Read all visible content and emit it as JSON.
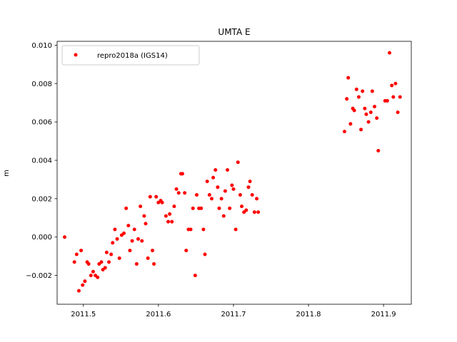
{
  "chart_data": {
    "type": "scatter",
    "title": "UMTA E",
    "xlabel": "",
    "ylabel": "m",
    "xlim": [
      2011.465,
      2011.937
    ],
    "ylim": [
      -0.0035,
      0.0102
    ],
    "xticks": [
      2011.5,
      2011.6,
      2011.7,
      2011.8,
      2011.9
    ],
    "xtick_labels": [
      "2011.5",
      "2011.6",
      "2011.7",
      "2011.8",
      "2011.9"
    ],
    "yticks": [
      -0.002,
      0.0,
      0.002,
      0.004,
      0.006,
      0.008,
      0.01
    ],
    "ytick_labels": [
      "−0.002",
      "0.000",
      "0.002",
      "0.004",
      "0.006",
      "0.008",
      "0.010"
    ],
    "grid": false,
    "legend_position": "top-left",
    "series": [
      {
        "name": "repro2018a (IGS14)",
        "color": "#ff0000",
        "marker": "dot",
        "points": [
          [
            2011.475,
            0.0
          ],
          [
            2011.488,
            -0.0013
          ],
          [
            2011.491,
            -0.0009
          ],
          [
            2011.494,
            -0.0028
          ],
          [
            2011.497,
            -0.0007
          ],
          [
            2011.499,
            -0.0025
          ],
          [
            2011.502,
            -0.0023
          ],
          [
            2011.505,
            -0.0013
          ],
          [
            2011.507,
            -0.0014
          ],
          [
            2011.51,
            -0.002
          ],
          [
            2011.513,
            -0.0018
          ],
          [
            2011.516,
            -0.002
          ],
          [
            2011.519,
            -0.0021
          ],
          [
            2011.521,
            -0.0014
          ],
          [
            2011.524,
            -0.0013
          ],
          [
            2011.526,
            -0.0017
          ],
          [
            2011.529,
            -0.0016
          ],
          [
            2011.531,
            -0.0008
          ],
          [
            2011.534,
            -0.0013
          ],
          [
            2011.537,
            -0.0009
          ],
          [
            2011.539,
            -0.0003
          ],
          [
            2011.542,
            0.0004
          ],
          [
            2011.545,
            -0.0001
          ],
          [
            2011.548,
            -0.0011
          ],
          [
            2011.551,
            0.0001
          ],
          [
            2011.554,
            0.0002
          ],
          [
            2011.557,
            0.0015
          ],
          [
            2011.56,
            0.0006
          ],
          [
            2011.562,
            -0.0007
          ],
          [
            2011.565,
            -0.0002
          ],
          [
            2011.568,
            0.0004
          ],
          [
            2011.571,
            -0.0014
          ],
          [
            2011.573,
            -0.0001
          ],
          [
            2011.576,
            0.0016
          ],
          [
            2011.578,
            -0.0002
          ],
          [
            2011.581,
            0.0011
          ],
          [
            2011.583,
            0.0007
          ],
          [
            2011.586,
            -0.0011
          ],
          [
            2011.589,
            0.0021
          ],
          [
            2011.592,
            -0.0007
          ],
          [
            2011.594,
            -0.0014
          ],
          [
            2011.597,
            0.0021
          ],
          [
            2011.6,
            0.0018
          ],
          [
            2011.603,
            0.0019
          ],
          [
            2011.605,
            0.0018
          ],
          [
            2011.61,
            0.0011
          ],
          [
            2011.613,
            0.0008
          ],
          [
            2011.615,
            0.0012
          ],
          [
            2011.618,
            0.0008
          ],
          [
            2011.621,
            0.0016
          ],
          [
            2011.624,
            0.0025
          ],
          [
            2011.627,
            0.0023
          ],
          [
            2011.63,
            0.0033
          ],
          [
            2011.632,
            0.0033
          ],
          [
            2011.635,
            0.0023
          ],
          [
            2011.637,
            -0.0007
          ],
          [
            2011.64,
            0.0004
          ],
          [
            2011.643,
            0.0004
          ],
          [
            2011.646,
            0.0015
          ],
          [
            2011.649,
            -0.002
          ],
          [
            2011.651,
            0.0022
          ],
          [
            2011.654,
            0.0015
          ],
          [
            2011.657,
            0.0015
          ],
          [
            2011.66,
            0.0004
          ],
          [
            2011.662,
            -0.0009
          ],
          [
            2011.665,
            0.0029
          ],
          [
            2011.668,
            0.0022
          ],
          [
            2011.671,
            0.002
          ],
          [
            2011.673,
            0.0031
          ],
          [
            2011.676,
            0.0035
          ],
          [
            2011.679,
            0.0026
          ],
          [
            2011.681,
            0.0015
          ],
          [
            2011.684,
            0.002
          ],
          [
            2011.687,
            0.0011
          ],
          [
            2011.689,
            0.0024
          ],
          [
            2011.692,
            0.0035
          ],
          [
            2011.695,
            0.0015
          ],
          [
            2011.698,
            0.0027
          ],
          [
            2011.7,
            0.0025
          ],
          [
            2011.703,
            0.0004
          ],
          [
            2011.706,
            0.0039
          ],
          [
            2011.709,
            0.0022
          ],
          [
            2011.711,
            0.0016
          ],
          [
            2011.714,
            0.0013
          ],
          [
            2011.717,
            0.0014
          ],
          [
            2011.72,
            0.0026
          ],
          [
            2011.722,
            0.0029
          ],
          [
            2011.725,
            0.0022
          ],
          [
            2011.728,
            0.0013
          ],
          [
            2011.731,
            0.002
          ],
          [
            2011.733,
            0.0013
          ],
          [
            2011.848,
            0.0055
          ],
          [
            2011.851,
            0.0072
          ],
          [
            2011.853,
            0.0083
          ],
          [
            2011.856,
            0.0059
          ],
          [
            2011.859,
            0.0067
          ],
          [
            2011.861,
            0.0066
          ],
          [
            2011.864,
            0.0077
          ],
          [
            2011.867,
            0.0073
          ],
          [
            2011.87,
            0.0056
          ],
          [
            2011.872,
            0.0076
          ],
          [
            2011.875,
            0.0067
          ],
          [
            2011.877,
            0.0064
          ],
          [
            2011.88,
            0.006
          ],
          [
            2011.883,
            0.0065
          ],
          [
            2011.885,
            0.0076
          ],
          [
            2011.888,
            0.0068
          ],
          [
            2011.891,
            0.0062
          ],
          [
            2011.893,
            0.0045
          ],
          [
            2011.902,
            0.0071
          ],
          [
            2011.905,
            0.0071
          ],
          [
            2011.908,
            0.0096
          ],
          [
            2011.911,
            0.0079
          ],
          [
            2011.913,
            0.0073
          ],
          [
            2011.916,
            0.008
          ],
          [
            2011.919,
            0.0065
          ],
          [
            2011.922,
            0.0073
          ]
        ]
      }
    ]
  }
}
